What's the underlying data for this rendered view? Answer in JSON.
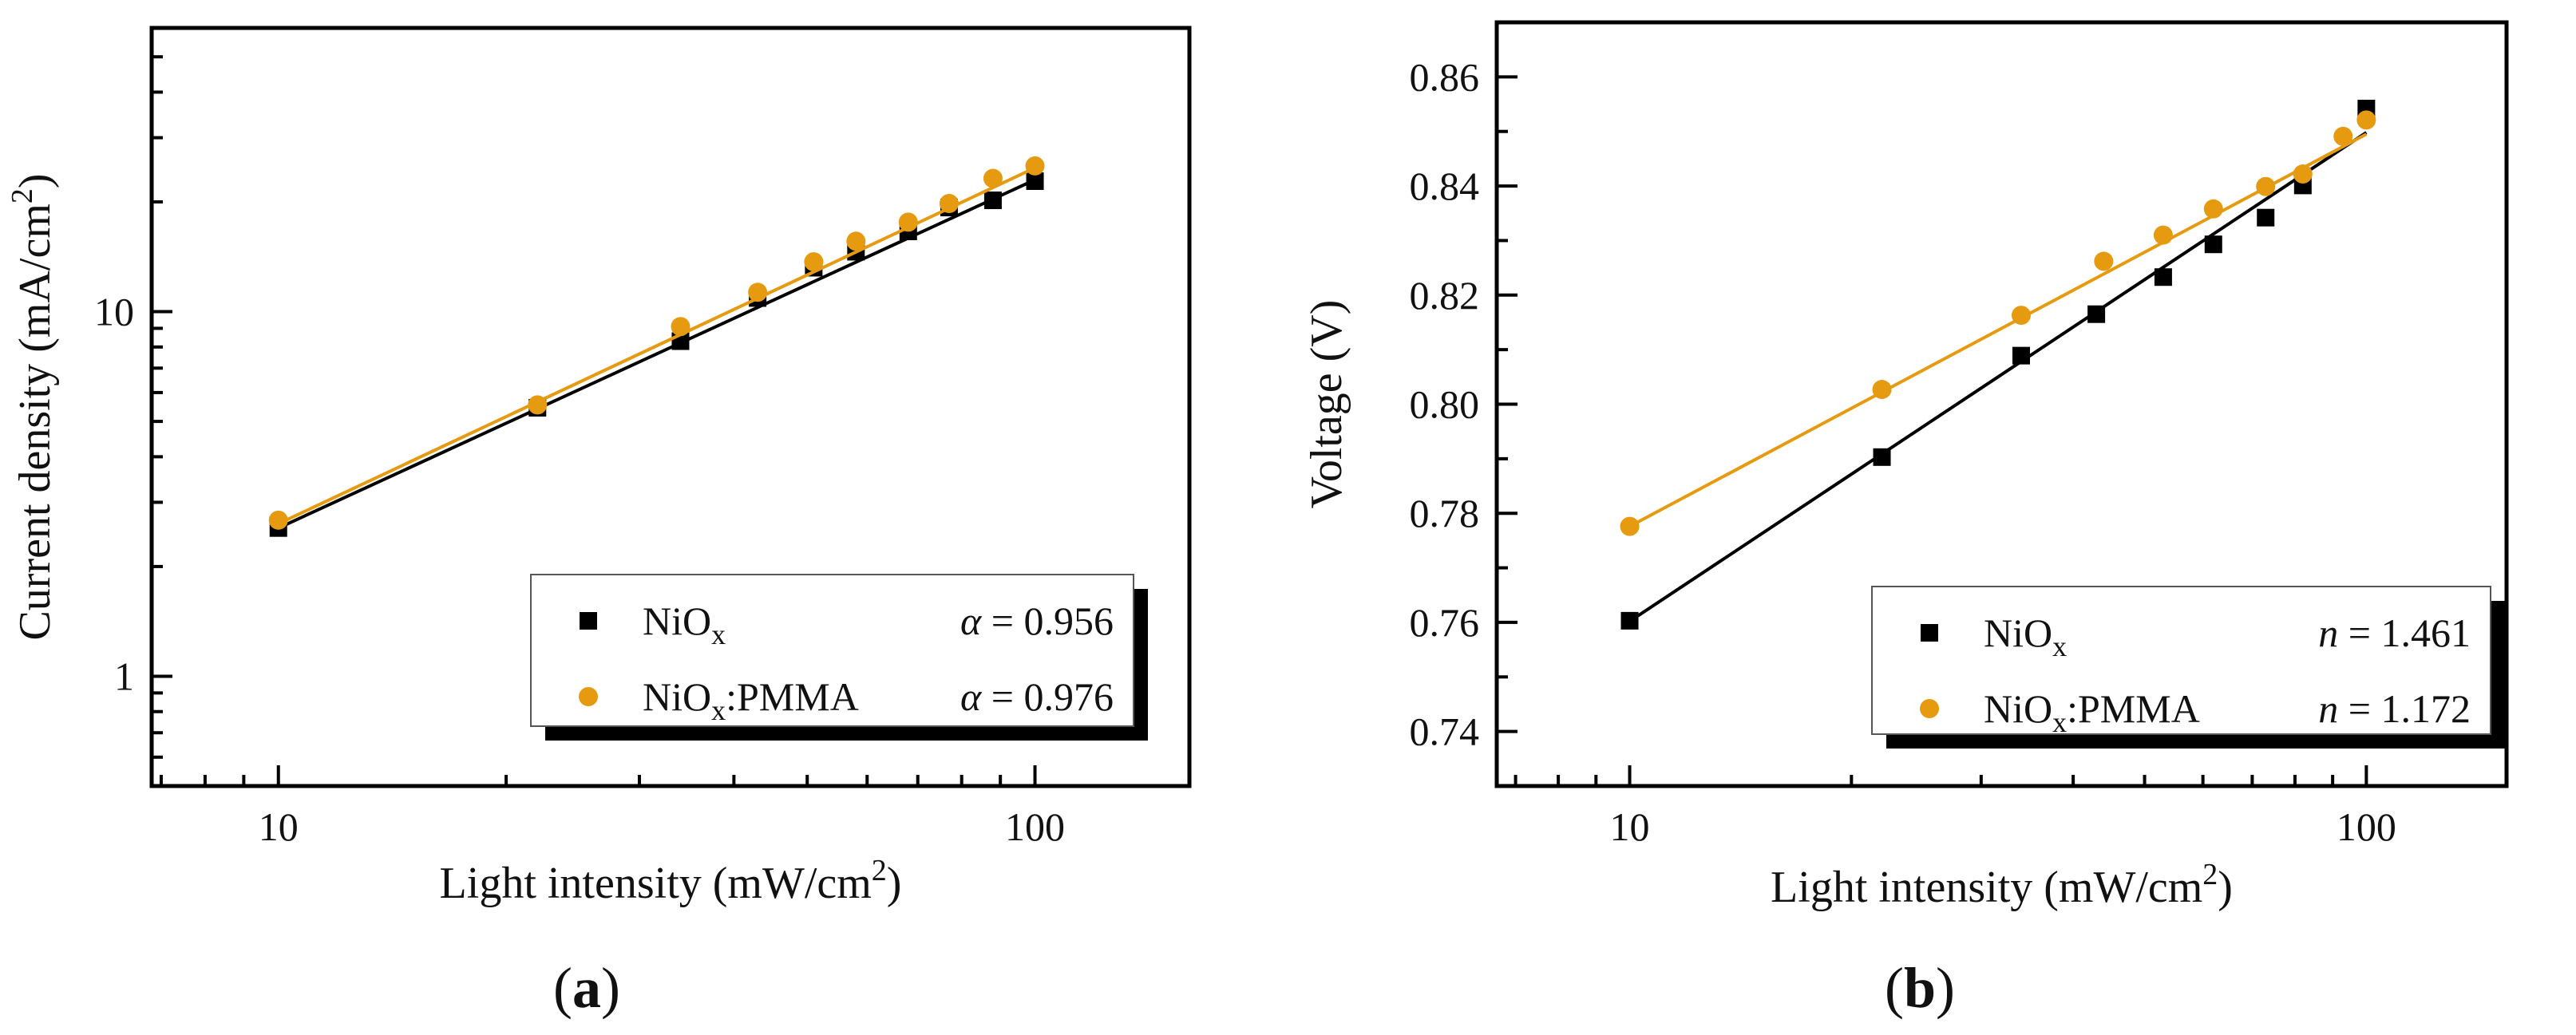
{
  "chart_data": [
    {
      "panel": "(a)",
      "panel_prefix": "(",
      "panel_letter": "a",
      "panel_suffix": ")",
      "type": "scatter",
      "xscale": "log",
      "yscale": "log",
      "xlabel": "Light intensity (mW/cm",
      "xlabel_sup": "2",
      "xlabel_end": ")",
      "ylabel": "Current density (mA/cm",
      "ylabel_sup": "2",
      "ylabel_end": ")",
      "xlim": [
        6.8,
        160
      ],
      "ylim": [
        0.5,
        60
      ],
      "xticks": [
        10,
        100
      ],
      "xtick_labels": [
        "10",
        "100"
      ],
      "yticks": [
        1,
        10
      ],
      "ytick_labels": [
        "1",
        "10"
      ],
      "legend_position": "bottom-right",
      "series": [
        {
          "name": "NiOx",
          "label_base": "NiO",
          "label_sub": "x",
          "label_suffix": "",
          "marker": "square",
          "color": "#000000",
          "fit_symbol": "α",
          "fit_text": " = 0.956",
          "fit_value": 0.956,
          "x": [
            10,
            22,
            34,
            43,
            51,
            58,
            68,
            77,
            88,
            100
          ],
          "y": [
            2.55,
            5.45,
            8.3,
            10.9,
            13.2,
            14.6,
            16.6,
            19.3,
            20.2,
            22.8
          ],
          "fit_line": [
            [
              10,
              2.55
            ],
            [
              100,
              23.0
            ]
          ]
        },
        {
          "name": "NiOx:PMMA",
          "label_base": "NiO",
          "label_sub": "x",
          "label_suffix": ":PMMA",
          "marker": "circle",
          "color": "#E69A10",
          "fit_symbol": "α",
          "fit_text": " = 0.976",
          "fit_value": 0.976,
          "x": [
            10,
            22,
            34,
            43,
            51,
            58,
            68,
            77,
            88,
            100
          ],
          "y": [
            2.68,
            5.55,
            9.1,
            11.3,
            13.7,
            15.6,
            17.6,
            19.8,
            23.2,
            25.1
          ],
          "fit_line": [
            [
              10,
              2.62
            ],
            [
              100,
              24.8
            ]
          ]
        }
      ]
    },
    {
      "panel": "(b)",
      "panel_prefix": "(",
      "panel_letter": "b",
      "panel_suffix": ")",
      "type": "scatter",
      "xscale": "log",
      "yscale": "linear",
      "xlabel": "Light intensity (mW/cm",
      "xlabel_sup": "2",
      "xlabel_end": ")",
      "ylabel": "Voltage (V)",
      "ylabel_sup": "",
      "ylabel_end": "",
      "xlim": [
        6.6,
        155
      ],
      "ylim": [
        0.73,
        0.87
      ],
      "xticks": [
        10,
        100
      ],
      "xtick_labels": [
        "10",
        "100"
      ],
      "yticks": [
        0.74,
        0.76,
        0.78,
        0.8,
        0.82,
        0.84,
        0.86
      ],
      "ytick_labels": [
        "0.74",
        "0.76",
        "0.78",
        "0.80",
        "0.82",
        "0.84",
        "0.86"
      ],
      "legend_position": "bottom-right",
      "series": [
        {
          "name": "NiOx",
          "label_base": "NiO",
          "label_sub": "x",
          "label_suffix": "",
          "marker": "square",
          "color": "#000000",
          "fit_symbol": "n",
          "fit_text": " = 1.461",
          "fit_value": 1.461,
          "x": [
            10,
            22,
            34,
            43,
            53,
            62,
            73,
            82,
            100
          ],
          "y": [
            0.7603,
            0.7903,
            0.8089,
            0.8165,
            0.8233,
            0.8293,
            0.8342,
            0.8401,
            0.8542
          ],
          "fit_line": [
            [
              10,
              0.7602
            ],
            [
              100,
              0.8498
            ]
          ]
        },
        {
          "name": "NiOx:PMMA",
          "label_base": "NiO",
          "label_sub": "x",
          "label_suffix": ":PMMA",
          "marker": "circle",
          "color": "#E69A10",
          "fit_symbol": "n",
          "fit_text": " = 1.172",
          "fit_value": 1.172,
          "x": [
            10,
            22,
            34,
            44,
            53,
            62,
            73,
            82,
            93,
            100
          ],
          "y": [
            0.7776,
            0.8027,
            0.8163,
            0.8262,
            0.831,
            0.8358,
            0.8399,
            0.8422,
            0.8491,
            0.8521
          ],
          "fit_line": [
            [
              10,
              0.7776
            ],
            [
              100,
              0.8495
            ]
          ]
        }
      ]
    }
  ]
}
